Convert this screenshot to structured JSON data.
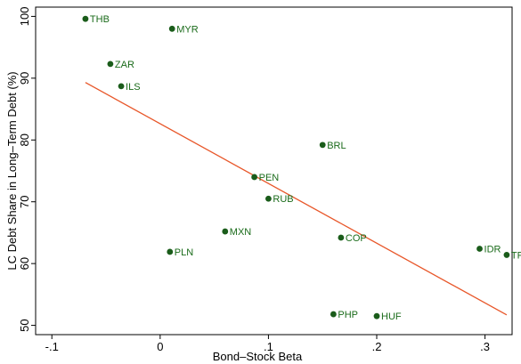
{
  "chart_data": {
    "type": "scatter",
    "title": "",
    "xlabel": "Bond–Stock Beta",
    "ylabel": "LC Debt Share in Long–Term Debt (%)",
    "xlim": [
      -0.115,
      0.325
    ],
    "ylim": [
      48.5,
      101.5
    ],
    "xticks": [
      -0.1,
      0,
      0.1,
      0.2,
      0.3
    ],
    "xtick_labels": [
      "-.1",
      "0",
      ".1",
      ".2",
      ".3"
    ],
    "yticks": [
      50,
      60,
      70,
      80,
      90,
      100
    ],
    "ytick_labels": [
      "50",
      "60",
      "70",
      "80",
      "90",
      "100"
    ],
    "grid": false,
    "legend": "none",
    "point_color": "#1a5c1a",
    "label_color": "#1a6b1a",
    "fit_line_color": "#e8572a",
    "points": [
      {
        "label": "THB",
        "x": -0.069,
        "y": 99.6
      },
      {
        "label": "MYR",
        "x": 0.011,
        "y": 98.0
      },
      {
        "label": "ZAR",
        "x": -0.046,
        "y": 92.3
      },
      {
        "label": "ILS",
        "x": -0.036,
        "y": 88.7
      },
      {
        "label": "BRL",
        "x": 0.15,
        "y": 79.2
      },
      {
        "label": "PEN",
        "x": 0.087,
        "y": 74.0
      },
      {
        "label": "RUB",
        "x": 0.1,
        "y": 70.5
      },
      {
        "label": "MXN",
        "x": 0.06,
        "y": 65.2
      },
      {
        "label": "COP",
        "x": 0.167,
        "y": 64.2
      },
      {
        "label": "PLN",
        "x": 0.009,
        "y": 61.9
      },
      {
        "label": "IDR",
        "x": 0.295,
        "y": 62.4
      },
      {
        "label": "TRY",
        "x": 0.32,
        "y": 61.4
      },
      {
        "label": "PHP",
        "x": 0.16,
        "y": 51.8
      },
      {
        "label": "HUF",
        "x": 0.2,
        "y": 51.5
      }
    ],
    "fit_line": {
      "x": [
        -0.069,
        0.32
      ],
      "y": [
        89.3,
        51.7
      ]
    }
  }
}
